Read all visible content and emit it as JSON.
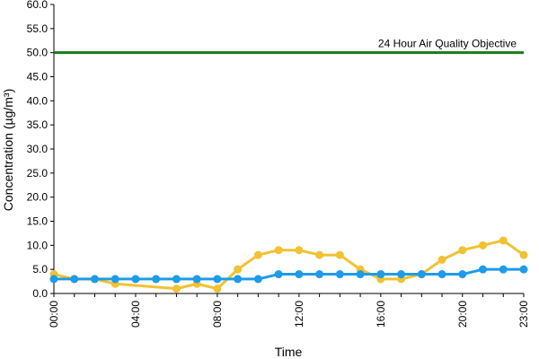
{
  "chart_data": {
    "type": "line",
    "title": "",
    "xlabel": "Time",
    "ylabel": "Concentration (µg/m³)",
    "ylim": [
      0,
      60
    ],
    "y_ticks": [
      "0.0",
      "5.0",
      "10.0",
      "15.0",
      "20.0",
      "25.0",
      "30.0",
      "35.0",
      "40.0",
      "45.0",
      "50.0",
      "55.0",
      "60.0"
    ],
    "x_ticks": [
      "00:00",
      "04:00",
      "08:00",
      "12:00",
      "16:00",
      "20:00",
      "23:00"
    ],
    "x": [
      0,
      1,
      2,
      3,
      4,
      5,
      6,
      7,
      8,
      9,
      10,
      11,
      12,
      13,
      14,
      15,
      16,
      17,
      18,
      19,
      20,
      21,
      22,
      23
    ],
    "grid": false,
    "legend": "none",
    "series": [
      {
        "color": "#f1c232",
        "values": [
          4,
          3,
          3,
          2,
          null,
          null,
          1,
          2,
          1,
          5,
          8,
          9,
          9,
          8,
          8,
          5,
          3,
          3,
          4,
          7,
          9,
          10,
          11,
          8
        ]
      },
      {
        "color": "#1e9be9",
        "values": [
          3,
          3,
          3,
          3,
          3,
          3,
          3,
          3,
          3,
          3,
          3,
          4,
          4,
          4,
          4,
          4,
          4,
          4,
          4,
          4,
          4,
          5,
          5,
          5
        ]
      }
    ],
    "reference_line": {
      "value": 50,
      "label": "24 Hour Air Quality Objective",
      "color": "#1a7a1a"
    }
  }
}
